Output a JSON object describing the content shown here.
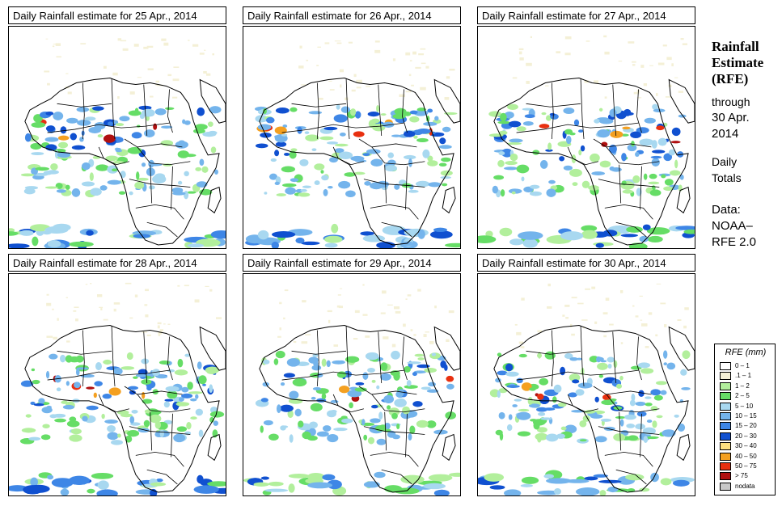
{
  "panels": [
    {
      "title": "Daily Rainfall estimate for  25 Apr., 2014"
    },
    {
      "title": "Daily Rainfall estimate for  26 Apr., 2014"
    },
    {
      "title": "Daily Rainfall estimate for  27 Apr., 2014"
    },
    {
      "title": "Daily Rainfall estimate for  28 Apr., 2014"
    },
    {
      "title": "Daily Rainfall estimate for  29 Apr., 2014"
    },
    {
      "title": "Daily Rainfall estimate for  30 Apr., 2014"
    }
  ],
  "side": {
    "title_lines": [
      "Rainfall",
      "Estimate",
      "(RFE)"
    ],
    "through_label": "through",
    "through_date_lines": [
      "30 Apr.",
      "2014"
    ],
    "totals_lines": [
      "Daily",
      "Totals"
    ],
    "data_lines": [
      "Data:",
      "NOAA–",
      "RFE 2.0"
    ]
  },
  "legend": {
    "title": "RFE (mm)",
    "entries": [
      {
        "label": "0 – 1",
        "color": "#ffffff"
      },
      {
        "label": ".1 – 1",
        "color": "#f4f0d6"
      },
      {
        "label": "1 – 2",
        "color": "#b2ef9c"
      },
      {
        "label": "2 – 5",
        "color": "#66dd66"
      },
      {
        "label": "5 – 10",
        "color": "#a8d8f0"
      },
      {
        "label": "10 – 15",
        "color": "#74b4ec"
      },
      {
        "label": "15 – 20",
        "color": "#3e86e6"
      },
      {
        "label": "20 – 30",
        "color": "#1050d0"
      },
      {
        "label": "30 – 40",
        "color": "#fce080"
      },
      {
        "label": "40 – 50",
        "color": "#f4a020"
      },
      {
        "label": "50 – 75",
        "color": "#e83010"
      },
      {
        "label": "> 75",
        "color": "#b01010"
      },
      {
        "label": "nodata",
        "color": "#c8c8c8"
      }
    ]
  }
}
